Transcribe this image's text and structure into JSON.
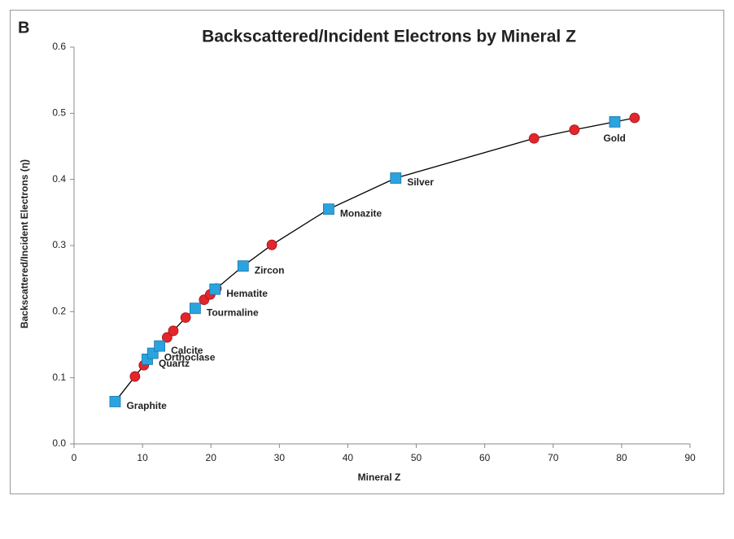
{
  "panel_label": "B",
  "chart_data": {
    "type": "scatter",
    "title": "Backscattered/Incident Electrons by Mineral Z",
    "x_label": "Mineral Z",
    "y_label": "Backscattered/Incident Electrons (η)",
    "xlim": [
      0,
      90
    ],
    "xticks": [
      0,
      10,
      20,
      30,
      40,
      50,
      60,
      70,
      80,
      90
    ],
    "ylim": [
      0,
      0.6
    ],
    "yticks": [
      {
        "value": 0,
        "label": "0.0"
      },
      0.1,
      0.2,
      0.3,
      0.4,
      0.5,
      0.6
    ],
    "grid": false,
    "series": [
      {
        "kind": "line",
        "color": "#000000",
        "x": [
          6,
          8.9,
          10.2,
          10.7,
          11.5,
          12.5,
          13.6,
          14.5,
          16.3,
          17.7,
          19.0,
          19.9,
          20.6,
          20.8,
          24.7,
          28.9,
          37.2,
          47,
          67.2,
          73.1,
          79,
          81.9
        ],
        "values": [
          0.064,
          0.102,
          0.119,
          0.128,
          0.137,
          0.148,
          0.161,
          0.171,
          0.191,
          0.205,
          0.218,
          0.226,
          0.234,
          0.235,
          0.269,
          0.301,
          0.355,
          0.402,
          0.462,
          0.475,
          0.487,
          0.493
        ]
      },
      {
        "kind": "circle",
        "color": "#e3262c",
        "x": [
          8.9,
          10.2,
          13.6,
          14.5,
          16.3,
          19.0,
          19.9,
          20.8,
          28.9,
          67.2,
          73.1,
          81.9
        ],
        "values": [
          0.102,
          0.119,
          0.161,
          0.171,
          0.191,
          0.218,
          0.226,
          0.235,
          0.301,
          0.462,
          0.475,
          0.493
        ]
      },
      {
        "kind": "square",
        "color": "#2ba3df",
        "x": [
          6,
          10.7,
          11.5,
          12.5,
          17.7,
          20.6,
          24.7,
          37.2,
          47,
          79
        ],
        "values": [
          0.064,
          0.128,
          0.137,
          0.148,
          0.205,
          0.234,
          0.269,
          0.355,
          0.402,
          0.487
        ],
        "labels": [
          "Graphite",
          "Quartz",
          "Orthoclase",
          "Calcite",
          "Tourmaline",
          "Hematite",
          "Zircon",
          "Monazite",
          "Silver",
          "Gold"
        ]
      }
    ]
  }
}
